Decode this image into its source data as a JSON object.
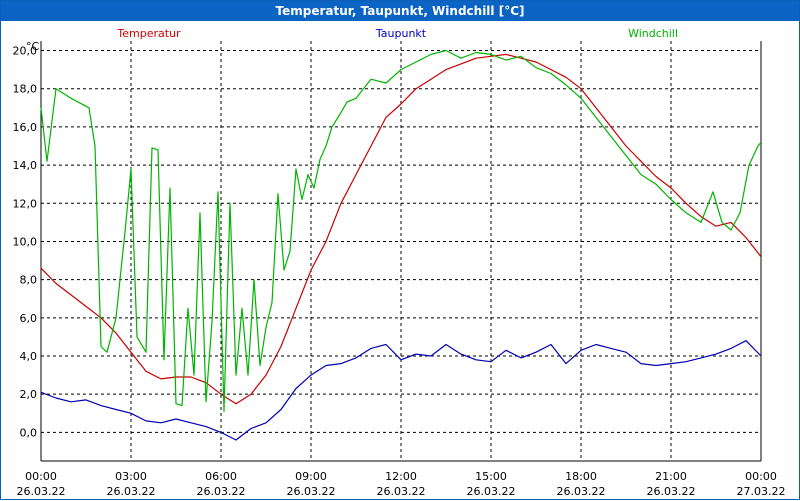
{
  "window": {
    "title": "Temperatur, Taupunkt, Windchill [°C]"
  },
  "chart_data": {
    "type": "line",
    "title": "Temperatur, Taupunkt, Windchill [°C]",
    "ylabel": "°C",
    "xlabel": "",
    "ylim": [
      -1.5,
      20.5
    ],
    "xlim_hours": [
      0,
      24
    ],
    "grid": true,
    "y_ticks": [
      "0,0",
      "2,0",
      "4,0",
      "6,0",
      "8,0",
      "10,0",
      "12,0",
      "14,0",
      "16,0",
      "18,0",
      "20,0"
    ],
    "y_tick_values": [
      0,
      2,
      4,
      6,
      8,
      10,
      12,
      14,
      16,
      18,
      20
    ],
    "x_ticks": [
      {
        "time": "00:00",
        "date": "26.03.22"
      },
      {
        "time": "03:00",
        "date": "26.03.22"
      },
      {
        "time": "06:00",
        "date": "26.03.22"
      },
      {
        "time": "09:00",
        "date": "26.03.22"
      },
      {
        "time": "12:00",
        "date": "26.03.22"
      },
      {
        "time": "15:00",
        "date": "26.03.22"
      },
      {
        "time": "18:00",
        "date": "26.03.22"
      },
      {
        "time": "21:00",
        "date": "26.03.22"
      },
      {
        "time": "00:00",
        "date": "27.03.22"
      }
    ],
    "legend": [
      {
        "name": "Temperatur",
        "color": "#d40000"
      },
      {
        "name": "Taupunkt",
        "color": "#0000c0"
      },
      {
        "name": "Windchill",
        "color": "#00b000"
      }
    ],
    "series": [
      {
        "name": "Temperatur",
        "color": "#c80000",
        "x": [
          0,
          0.5,
          1,
          1.5,
          2,
          2.5,
          3,
          3.5,
          4,
          4.5,
          5,
          5.5,
          6,
          6.5,
          7,
          7.5,
          8,
          8.5,
          9,
          9.5,
          10,
          10.5,
          11,
          11.5,
          12,
          12.5,
          13,
          13.5,
          14,
          14.5,
          15,
          15.5,
          16,
          16.5,
          17,
          17.5,
          18,
          18.5,
          19,
          19.5,
          20,
          20.5,
          21,
          21.5,
          22,
          22.5,
          23,
          23.5,
          24
        ],
        "values": [
          8.6,
          7.8,
          7.2,
          6.6,
          6.0,
          5.2,
          4.2,
          3.2,
          2.8,
          2.9,
          2.9,
          2.6,
          2.0,
          1.5,
          2.0,
          3.0,
          4.5,
          6.5,
          8.5,
          10.0,
          12.0,
          13.5,
          15.0,
          16.5,
          17.2,
          18.0,
          18.5,
          19.0,
          19.3,
          19.6,
          19.7,
          19.8,
          19.6,
          19.4,
          19.0,
          18.6,
          18.0,
          17.0,
          16.0,
          15.0,
          14.2,
          13.4,
          12.8,
          12.0,
          11.3,
          10.8,
          11.0,
          10.2,
          9.2
        ]
      },
      {
        "name": "Taupunkt",
        "color": "#0000b4",
        "x": [
          0,
          0.5,
          1,
          1.5,
          2,
          2.5,
          3,
          3.5,
          4,
          4.5,
          5,
          5.5,
          6,
          6.5,
          7,
          7.5,
          8,
          8.5,
          9,
          9.5,
          10,
          10.5,
          11,
          11.5,
          12,
          12.5,
          13,
          13.5,
          14,
          14.5,
          15,
          15.5,
          16,
          16.5,
          17,
          17.5,
          18,
          18.5,
          19,
          19.5,
          20,
          20.5,
          21,
          21.5,
          22,
          22.5,
          23,
          23.5,
          24
        ],
        "values": [
          2.1,
          1.8,
          1.6,
          1.7,
          1.4,
          1.2,
          1.0,
          0.6,
          0.5,
          0.7,
          0.5,
          0.3,
          0.0,
          -0.4,
          0.2,
          0.5,
          1.2,
          2.3,
          3.0,
          3.5,
          3.6,
          3.9,
          4.4,
          4.6,
          3.8,
          4.1,
          4.0,
          4.6,
          4.1,
          3.8,
          3.7,
          4.3,
          3.9,
          4.2,
          4.6,
          3.6,
          4.3,
          4.6,
          4.4,
          4.2,
          3.6,
          3.5,
          3.6,
          3.7,
          3.9,
          4.1,
          4.4,
          4.8,
          4.0
        ]
      },
      {
        "name": "Windchill",
        "color": "#00b400",
        "x": [
          0,
          0.2,
          0.5,
          1,
          1.6,
          1.8,
          2.0,
          2.2,
          2.5,
          2.8,
          3.0,
          3.2,
          3.5,
          3.7,
          3.9,
          4.1,
          4.3,
          4.5,
          4.7,
          4.9,
          5.1,
          5.3,
          5.5,
          5.7,
          5.9,
          6.1,
          6.3,
          6.5,
          6.7,
          6.9,
          7.1,
          7.3,
          7.5,
          7.7,
          7.9,
          8.1,
          8.3,
          8.5,
          8.7,
          8.9,
          9.1,
          9.3,
          9.5,
          9.7,
          9.9,
          10.2,
          10.5,
          11.0,
          11.5,
          12.0,
          12.5,
          13.0,
          13.5,
          14.0,
          14.5,
          15.0,
          15.5,
          16.0,
          16.5,
          17.0,
          17.5,
          18.0,
          18.5,
          19.0,
          19.5,
          20.0,
          20.5,
          21.0,
          21.5,
          22.0,
          22.4,
          22.7,
          23.0,
          23.3,
          23.6,
          23.9,
          24.0
        ],
        "values": [
          17.0,
          14.2,
          18.0,
          17.5,
          17.0,
          15.0,
          4.5,
          4.2,
          6.0,
          10.5,
          13.8,
          5.0,
          4.2,
          14.9,
          14.8,
          3.8,
          12.8,
          1.5,
          1.4,
          6.5,
          3.0,
          11.5,
          1.6,
          5.8,
          12.6,
          1.1,
          12.0,
          3.0,
          6.5,
          3.0,
          8.0,
          3.5,
          5.5,
          6.8,
          12.5,
          8.5,
          9.5,
          13.8,
          12.2,
          13.5,
          12.8,
          14.3,
          15.0,
          16.0,
          16.5,
          17.3,
          17.5,
          18.5,
          18.3,
          19.0,
          19.4,
          19.8,
          20.0,
          19.6,
          19.9,
          19.8,
          19.5,
          19.7,
          19.1,
          18.8,
          18.2,
          17.5,
          16.5,
          15.5,
          14.5,
          13.5,
          13.0,
          12.2,
          11.5,
          11.0,
          12.6,
          11.0,
          10.6,
          11.5,
          14.0,
          15.0,
          15.2
        ]
      }
    ]
  }
}
